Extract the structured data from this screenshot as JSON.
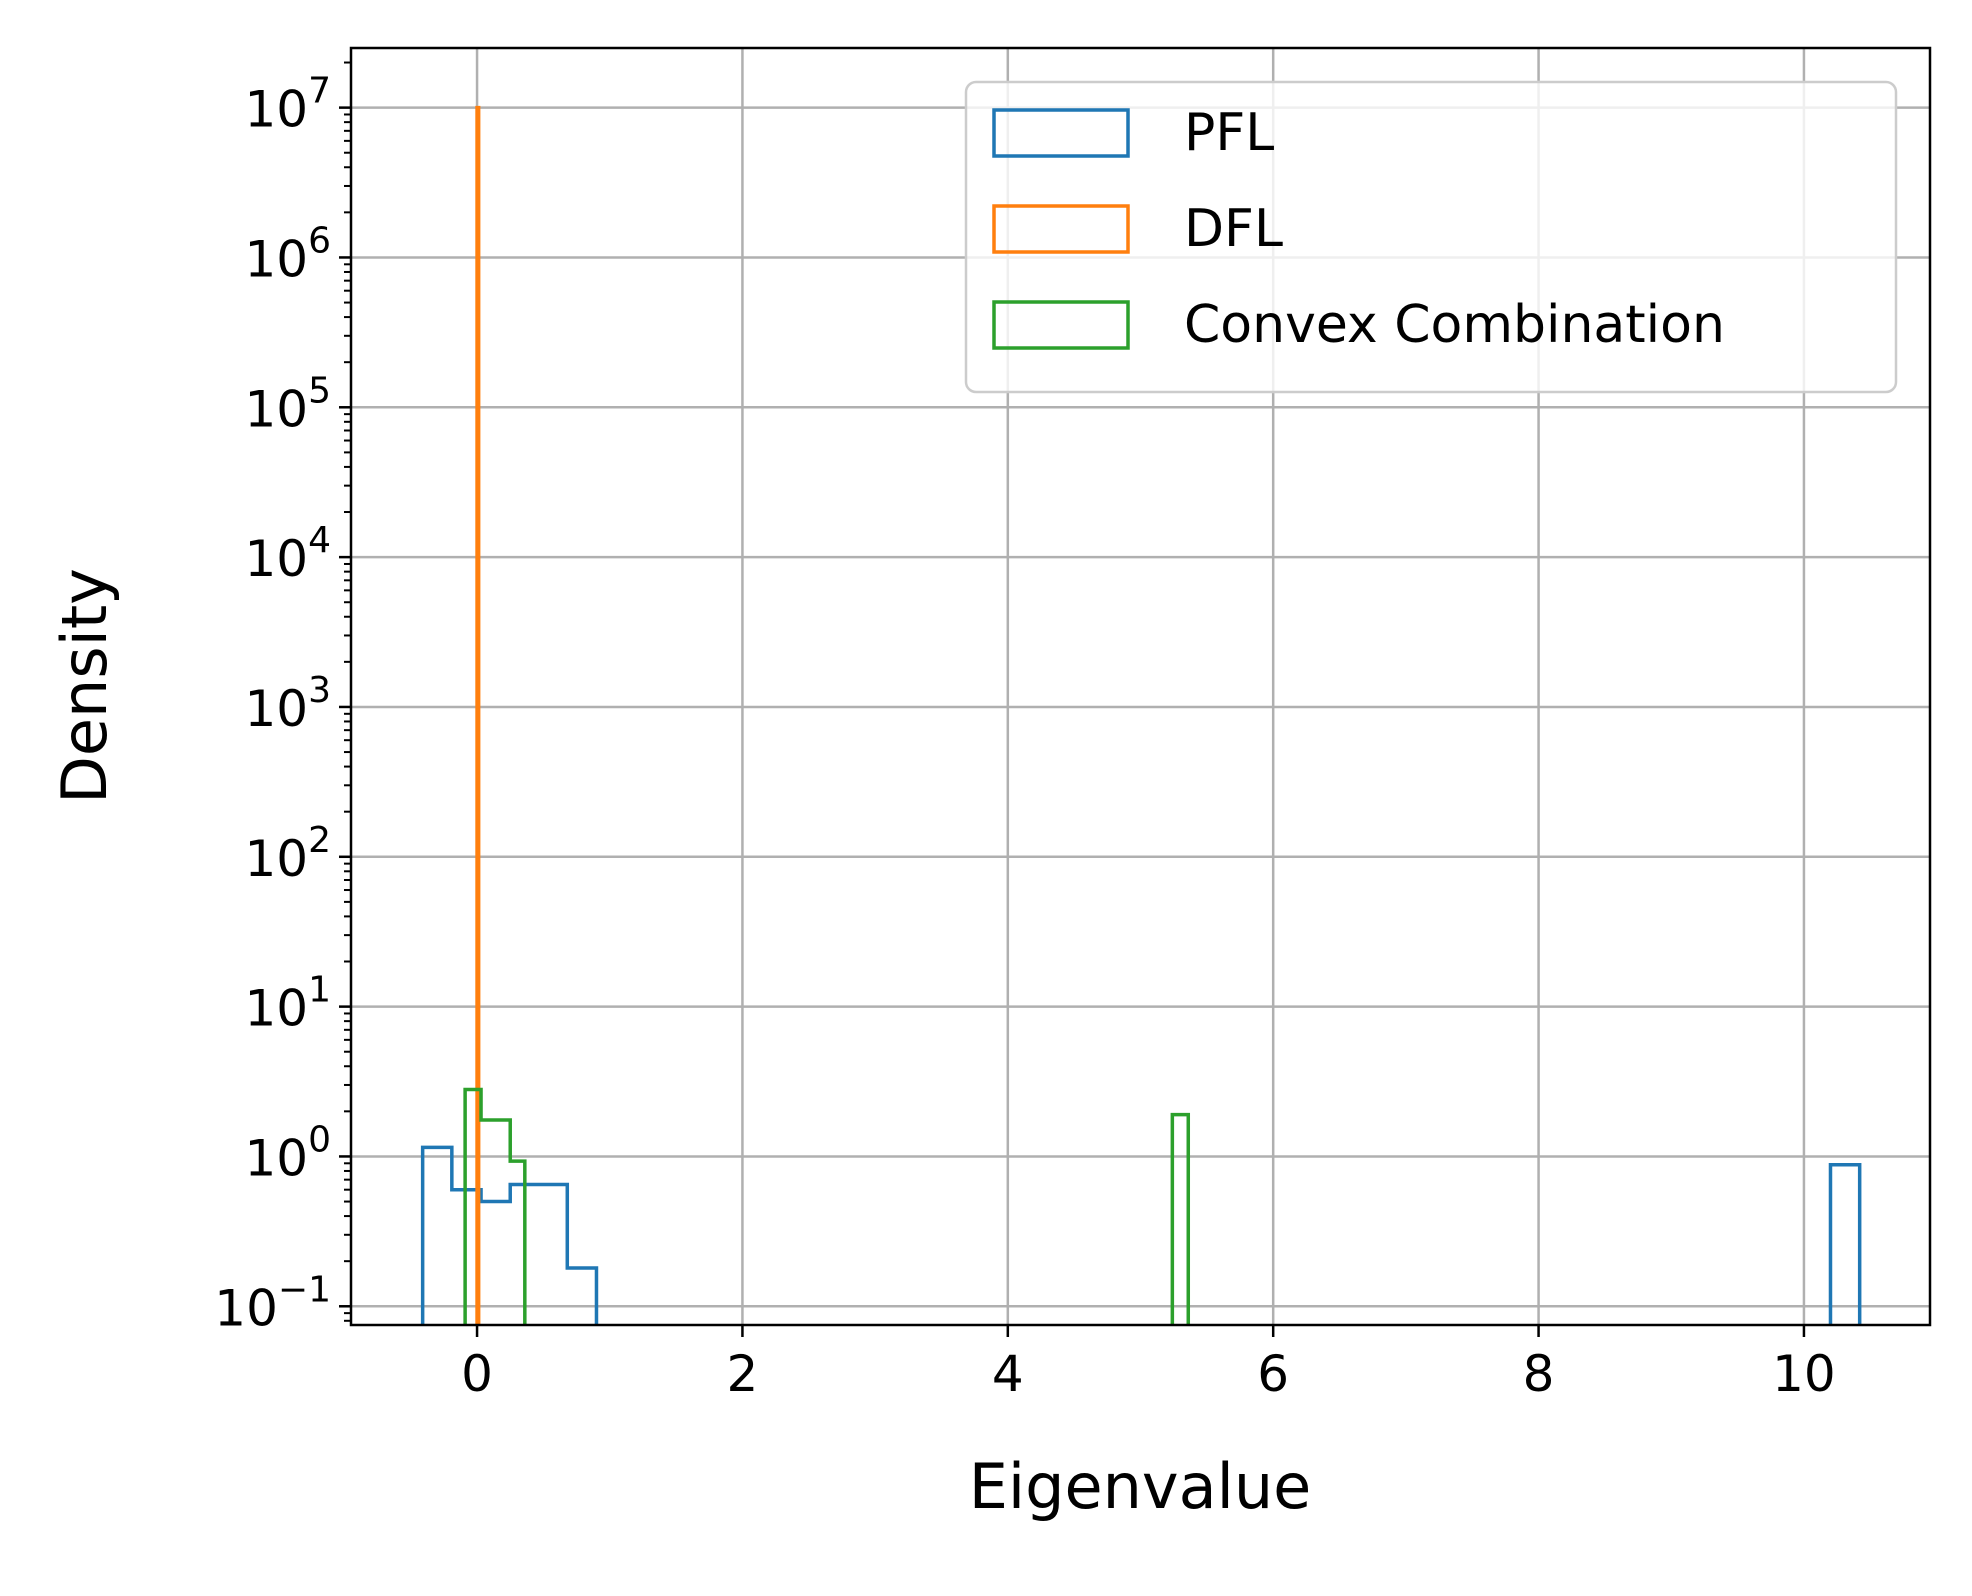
{
  "chart_data": {
    "type": "histogram",
    "xlabel": "Eigenvalue",
    "ylabel": "Density",
    "xlim": [
      -0.95,
      10.95
    ],
    "ylim": [
      0.075,
      25000000
    ],
    "yscale": "log",
    "grid": true,
    "legend_placement": "top-right",
    "xticks": [
      0,
      2,
      4,
      6,
      8,
      10
    ],
    "yticks": [
      {
        "value": 0.1,
        "base": "10",
        "exp": "−1"
      },
      {
        "value": 1,
        "base": "10",
        "exp": "0"
      },
      {
        "value": 10,
        "base": "10",
        "exp": "1"
      },
      {
        "value": 100,
        "base": "10",
        "exp": "2"
      },
      {
        "value": 1000,
        "base": "10",
        "exp": "3"
      },
      {
        "value": 10000,
        "base": "10",
        "exp": "4"
      },
      {
        "value": 100000,
        "base": "10",
        "exp": "5"
      },
      {
        "value": 1000000,
        "base": "10",
        "exp": "6"
      },
      {
        "value": 10000000,
        "base": "10",
        "exp": "7"
      }
    ],
    "series": [
      {
        "name": "PFL",
        "color": "#1f77b4",
        "bins": [
          {
            "x0": -0.41,
            "x1": -0.19,
            "density": 1.15
          },
          {
            "x0": -0.19,
            "x1": 0.03,
            "density": 0.6
          },
          {
            "x0": 0.03,
            "x1": 0.25,
            "density": 0.5
          },
          {
            "x0": 0.25,
            "x1": 0.47,
            "density": 0.65
          },
          {
            "x0": 0.47,
            "x1": 0.68,
            "density": 0.65
          },
          {
            "x0": 0.68,
            "x1": 0.9,
            "density": 0.18
          },
          {
            "x0": 10.2,
            "x1": 10.42,
            "density": 0.88
          }
        ]
      },
      {
        "name": "DFL",
        "color": "#ff7f0e",
        "bins": [
          {
            "x0": 0.0,
            "x1": 0.012,
            "density": 10000000
          }
        ]
      },
      {
        "name": "Convex Combination",
        "color": "#2ca02c",
        "bins": [
          {
            "x0": -0.09,
            "x1": 0.03,
            "density": 2.8
          },
          {
            "x0": 0.03,
            "x1": 0.25,
            "density": 1.75
          },
          {
            "x0": 0.25,
            "x1": 0.36,
            "density": 0.93
          },
          {
            "x0": 5.24,
            "x1": 5.36,
            "density": 1.9
          }
        ]
      }
    ]
  }
}
